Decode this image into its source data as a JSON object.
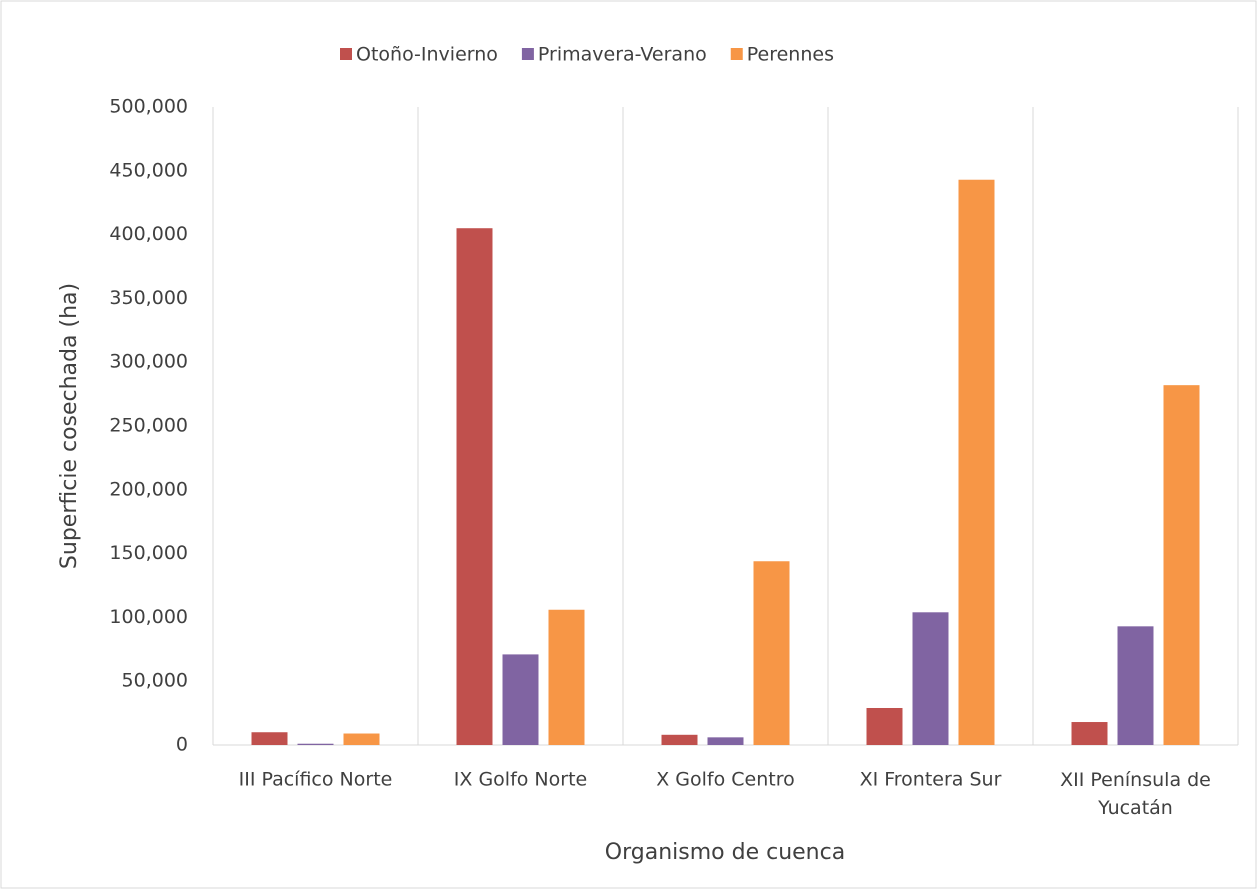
{
  "chart_data": {
    "type": "bar",
    "x_label": "Organismo de cuenca",
    "y_label": "Superficie cosechada (ha)",
    "categories": [
      "III Pacífico Norte",
      "IX Golfo Norte",
      "X Golfo Centro",
      "XI Frontera Sur",
      "XII Península de Yucatán"
    ],
    "series": [
      {
        "name": "Otoño-Invierno",
        "color": "#c0504d",
        "values": [
          10000,
          405000,
          8000,
          29000,
          18000
        ]
      },
      {
        "name": "Primavera-Verano",
        "color": "#8064a2",
        "values": [
          1000,
          71000,
          6000,
          104000,
          93000
        ]
      },
      {
        "name": "Perennes",
        "color": "#f79646",
        "values": [
          9000,
          106000,
          144000,
          443000,
          282000
        ]
      }
    ],
    "ylim": [
      0,
      500000
    ],
    "yticks": [
      0,
      {
        "value": 50000,
        "label": "50,000"
      },
      {
        "value": 100000,
        "label": "100,000"
      },
      {
        "value": 150000,
        "label": "150,000"
      },
      {
        "value": 200000,
        "label": "200,000"
      },
      {
        "value": 250000,
        "label": "250,000"
      },
      {
        "value": 300000,
        "label": "300,000"
      },
      {
        "value": 350000,
        "label": "350,000"
      },
      {
        "value": 400000,
        "label": "400,000"
      },
      {
        "value": 450000,
        "label": "450,000"
      },
      {
        "value": 500000,
        "label": "500,000"
      }
    ],
    "legend": "top"
  }
}
